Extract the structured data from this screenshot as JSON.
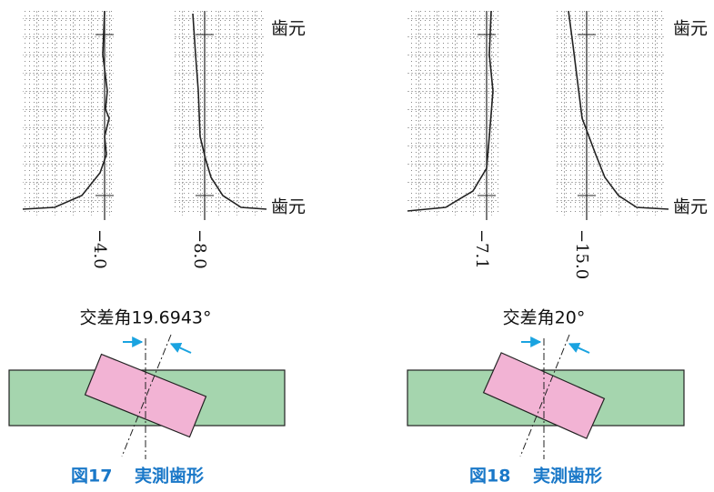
{
  "figures": [
    {
      "charts": [
        {
          "label": "−4.0"
        },
        {
          "label": "−8.0"
        }
      ],
      "side_labels": [
        "歯元",
        "歯元"
      ],
      "angle_label": "交差角19.6943°",
      "caption": {
        "number": "図17",
        "text": "実測歯形"
      }
    },
    {
      "charts": [
        {
          "label": "−7.1"
        },
        {
          "label": "−15.0"
        }
      ],
      "side_labels": [
        "歯元",
        "歯元"
      ],
      "angle_label": "交差角20°",
      "caption": {
        "number": "図18",
        "text": "実測歯形"
      }
    }
  ]
}
